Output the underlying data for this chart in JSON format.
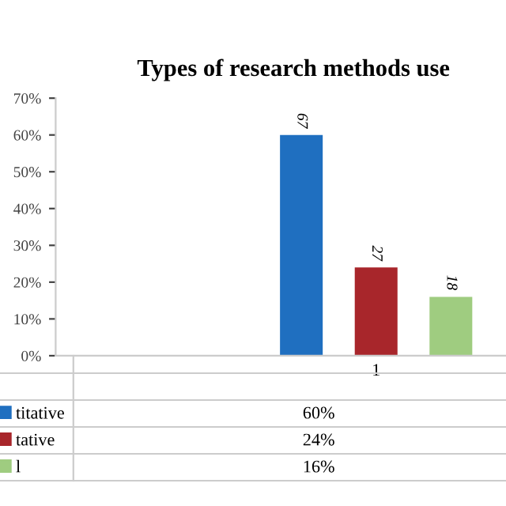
{
  "chart_data": {
    "type": "bar",
    "title": "Types of research methods use",
    "categories": [
      "1"
    ],
    "series": [
      {
        "name": "titative",
        "color": "#1f6fc0",
        "values": [
          60
        ]
      },
      {
        "name": "tative",
        "color": "#a8262b",
        "values": [
          24
        ]
      },
      {
        "name": "l",
        "color": "#9fcc80",
        "values": [
          16
        ]
      }
    ],
    "ylim": [
      0,
      70
    ],
    "yticks": [
      {
        "value": 0,
        "label": "0%"
      },
      {
        "value": 10,
        "label": "10%"
      },
      {
        "value": 20,
        "label": "20%"
      },
      {
        "value": 30,
        "label": "30%"
      },
      {
        "value": 40,
        "label": "40%"
      },
      {
        "value": 50,
        "label": "50%"
      },
      {
        "value": 60,
        "label": "60%"
      },
      {
        "value": 70,
        "label": "70%"
      }
    ],
    "grid": false,
    "legend": "bottom left",
    "annotations": [
      "60%",
      "24%",
      "16%",
      "67",
      "27",
      "18"
    ]
  }
}
